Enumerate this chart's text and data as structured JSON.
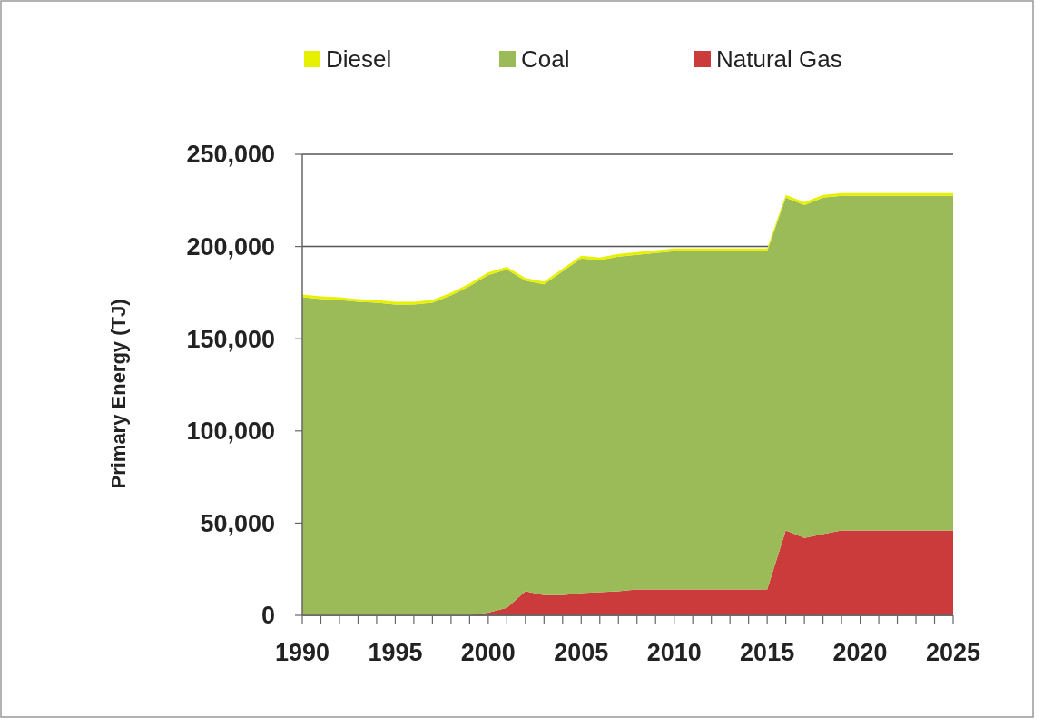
{
  "chart_data": {
    "type": "area",
    "stacked": true,
    "ylabel": "Primary Energy (TJ)",
    "x": [
      1990,
      1991,
      1992,
      1993,
      1994,
      1995,
      1996,
      1997,
      1998,
      1999,
      2000,
      2001,
      2002,
      2003,
      2004,
      2005,
      2006,
      2007,
      2008,
      2009,
      2010,
      2011,
      2012,
      2013,
      2014,
      2015,
      2016,
      2017,
      2018,
      2019,
      2020,
      2021,
      2022,
      2023,
      2024,
      2025
    ],
    "series": [
      {
        "name": "Natural Gas",
        "color": "#cc3b3b",
        "values": [
          0,
          0,
          0,
          0,
          0,
          0,
          0,
          0,
          0,
          0,
          1500,
          4000,
          13000,
          11000,
          11000,
          12000,
          12500,
          13000,
          14000,
          14000,
          14000,
          14000,
          14000,
          14000,
          14000,
          14000,
          46000,
          42000,
          44000,
          46000,
          46000,
          46000,
          46000,
          46000,
          46000,
          46000
        ]
      },
      {
        "name": "Coal",
        "color": "#9bbb59",
        "values": [
          172500,
          171500,
          171000,
          170000,
          169500,
          168500,
          168500,
          169500,
          173500,
          178500,
          183000,
          183500,
          168500,
          168500,
          175500,
          181500,
          180000,
          181500,
          181500,
          182500,
          183500,
          183500,
          183500,
          183500,
          183500,
          183500,
          180500,
          180500,
          182500,
          181500,
          181500,
          181500,
          181500,
          181500,
          181500,
          181500
        ]
      },
      {
        "name": "Diesel",
        "color": "#e6f000",
        "values": [
          1500,
          1500,
          1500,
          1500,
          1500,
          1500,
          1500,
          1500,
          1500,
          1500,
          1500,
          1500,
          1500,
          1500,
          1500,
          1500,
          1500,
          1500,
          1500,
          1500,
          1500,
          1500,
          1500,
          1500,
          1500,
          1500,
          1500,
          1500,
          1500,
          1500,
          1500,
          1500,
          1500,
          1500,
          1500,
          1500
        ]
      }
    ],
    "xlim": [
      1990,
      2025
    ],
    "xticks": [
      1990,
      {
        "value": 1991,
        "label": null
      },
      {
        "value": 1992,
        "label": null
      },
      {
        "value": 1993,
        "label": null
      },
      {
        "value": 1994,
        "label": null
      },
      1995,
      {
        "value": 1996,
        "label": null
      },
      {
        "value": 1997,
        "label": null
      },
      {
        "value": 1998,
        "label": null
      },
      {
        "value": 1999,
        "label": null
      },
      2000,
      {
        "value": 2001,
        "label": null
      },
      {
        "value": 2002,
        "label": null
      },
      {
        "value": 2003,
        "label": null
      },
      {
        "value": 2004,
        "label": null
      },
      2005,
      {
        "value": 2006,
        "label": null
      },
      {
        "value": 2007,
        "label": null
      },
      {
        "value": 2008,
        "label": null
      },
      {
        "value": 2009,
        "label": null
      },
      2010,
      {
        "value": 2011,
        "label": null
      },
      {
        "value": 2012,
        "label": null
      },
      {
        "value": 2013,
        "label": null
      },
      {
        "value": 2014,
        "label": null
      },
      2015,
      {
        "value": 2016,
        "label": null
      },
      {
        "value": 2017,
        "label": null
      },
      {
        "value": 2018,
        "label": null
      },
      {
        "value": 2019,
        "label": null
      },
      2020,
      {
        "value": 2021,
        "label": null
      },
      {
        "value": 2022,
        "label": null
      },
      {
        "value": 2023,
        "label": null
      },
      {
        "value": 2024,
        "label": null
      },
      2025
    ],
    "ylim": [
      0,
      250000
    ],
    "yticks": [
      0,
      {
        "value": 50000,
        "label": "50,000"
      },
      {
        "value": 100000,
        "label": "100,000"
      },
      {
        "value": 150000,
        "label": "150,000"
      },
      {
        "value": 200000,
        "label": "200,000"
      },
      {
        "value": 250000,
        "label": "250,000"
      }
    ],
    "grid": "y",
    "legend": "top"
  }
}
